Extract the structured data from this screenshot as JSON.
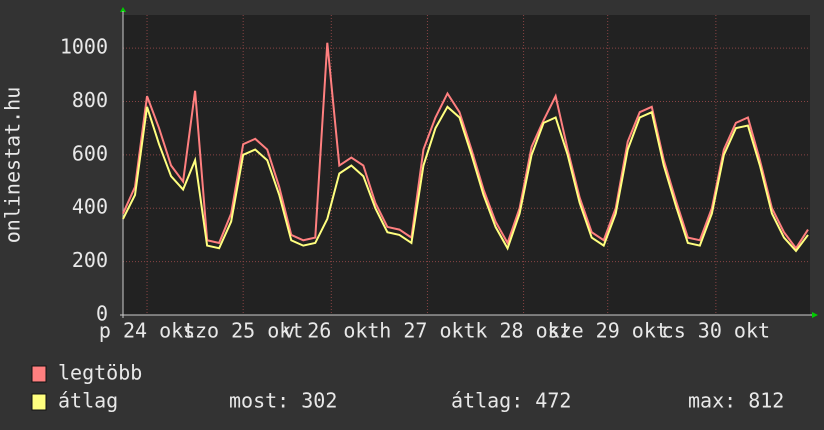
{
  "chart_data": {
    "type": "line",
    "y_label": "onlinestat.hu",
    "x": [
      0,
      3,
      6,
      9,
      12,
      15,
      18,
      21,
      24,
      27,
      30,
      33,
      36,
      39,
      42,
      45,
      48,
      51,
      54,
      57,
      60,
      63,
      66,
      69,
      72,
      75,
      78,
      81,
      84,
      87,
      90,
      93,
      96,
      99,
      102,
      105,
      108,
      111,
      114,
      117,
      120,
      123,
      126,
      129,
      132,
      135,
      138,
      141,
      144,
      147,
      150,
      153,
      156,
      159,
      162,
      165,
      168,
      171
    ],
    "xlim": [
      0,
      171
    ],
    "xticks": [
      {
        "value": 6,
        "label": "p 24 okt"
      },
      {
        "value": 30,
        "label": "szo 25 okt"
      },
      {
        "value": 52,
        "label": "v 26 okt"
      },
      {
        "value": 76,
        "label": "h 27 okt"
      },
      {
        "value": 100,
        "label": "k 28 okt"
      },
      {
        "value": 121,
        "label": "sze 29 okt"
      },
      {
        "value": 148,
        "label": "cs 30 okt"
      }
    ],
    "ylim": [
      0,
      1124
    ],
    "yticks": [
      0,
      200,
      400,
      600,
      800,
      1000
    ],
    "grid": true,
    "series": [
      {
        "name": "legtöbb",
        "color": "#ff7f7f",
        "values": [
          380,
          480,
          820,
          700,
          560,
          500,
          840,
          280,
          270,
          380,
          640,
          660,
          620,
          480,
          300,
          280,
          290,
          1020,
          560,
          590,
          560,
          420,
          330,
          320,
          290,
          620,
          740,
          830,
          760,
          620,
          470,
          350,
          270,
          400,
          630,
          730,
          820,
          620,
          440,
          310,
          280,
          400,
          650,
          760,
          780,
          580,
          430,
          290,
          280,
          400,
          620,
          720,
          740,
          580,
          400,
          310,
          250,
          320
        ]
      },
      {
        "name": "átlag",
        "color": "#ffff7f",
        "values": [
          360,
          450,
          780,
          640,
          520,
          470,
          580,
          260,
          250,
          350,
          600,
          620,
          580,
          450,
          280,
          260,
          270,
          360,
          530,
          560,
          520,
          400,
          310,
          300,
          270,
          560,
          700,
          780,
          740,
          600,
          450,
          330,
          250,
          380,
          600,
          720,
          740,
          600,
          420,
          290,
          260,
          380,
          620,
          740,
          760,
          560,
          410,
          270,
          260,
          380,
          600,
          700,
          710,
          560,
          380,
          290,
          240,
          300
        ]
      }
    ],
    "stats": [
      "most: 302",
      "átlag: 472",
      "max: 812"
    ]
  }
}
